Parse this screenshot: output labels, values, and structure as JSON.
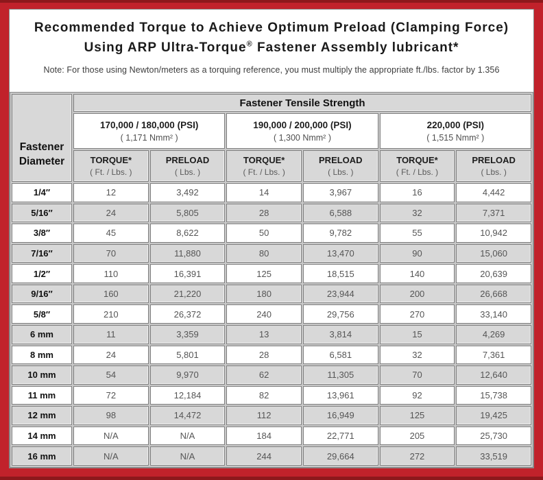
{
  "title": {
    "line1": "Recommended Torque to Achieve Optimum Preload (Clamping Force)",
    "line2_pre": "Using ARP Ultra-Torque",
    "line2_sup": "®",
    "line2_post": " Fastener Assembly lubricant*"
  },
  "note": "Note: For those using Newton/meters as a torquing reference, you must multiply the appropriate ft./lbs. factor by 1.356",
  "table": {
    "corner_header": {
      "line1": "Fastener",
      "line2": "Diameter"
    },
    "group_header": "Fastener Tensile Strength",
    "strength_columns": [
      {
        "psi": "170,000 / 180,000 (PSI)",
        "nmm": "( 1,171 Nmm² )"
      },
      {
        "psi": "190,000 / 200,000 (PSI)",
        "nmm": "( 1,300 Nmm² )"
      },
      {
        "psi": "220,000 (PSI)",
        "nmm": "( 1,515 Nmm² )"
      }
    ],
    "sub_headers": {
      "torque_label": "TORQUE*",
      "torque_unit": "( Ft. / Lbs. )",
      "preload_label": "PRELOAD",
      "preload_unit": "( Lbs. )"
    },
    "rows": [
      {
        "diameter": "1/4″",
        "values": [
          "12",
          "3,492",
          "14",
          "3,967",
          "16",
          "4,442"
        ]
      },
      {
        "diameter": "5/16″",
        "values": [
          "24",
          "5,805",
          "28",
          "6,588",
          "32",
          "7,371"
        ]
      },
      {
        "diameter": "3/8″",
        "values": [
          "45",
          "8,622",
          "50",
          "9,782",
          "55",
          "10,942"
        ]
      },
      {
        "diameter": "7/16″",
        "values": [
          "70",
          "11,880",
          "80",
          "13,470",
          "90",
          "15,060"
        ]
      },
      {
        "diameter": "1/2″",
        "values": [
          "110",
          "16,391",
          "125",
          "18,515",
          "140",
          "20,639"
        ]
      },
      {
        "diameter": "9/16″",
        "values": [
          "160",
          "21,220",
          "180",
          "23,944",
          "200",
          "26,668"
        ]
      },
      {
        "diameter": "5/8″",
        "values": [
          "210",
          "26,372",
          "240",
          "29,756",
          "270",
          "33,140"
        ]
      },
      {
        "diameter": "6 mm",
        "values": [
          "11",
          "3,359",
          "13",
          "3,814",
          "15",
          "4,269"
        ]
      },
      {
        "diameter": "8 mm",
        "values": [
          "24",
          "5,801",
          "28",
          "6,581",
          "32",
          "7,361"
        ]
      },
      {
        "diameter": "10 mm",
        "values": [
          "54",
          "9,970",
          "62",
          "11,305",
          "70",
          "12,640"
        ]
      },
      {
        "diameter": "11 mm",
        "values": [
          "72",
          "12,184",
          "82",
          "13,961",
          "92",
          "15,738"
        ]
      },
      {
        "diameter": "12 mm",
        "values": [
          "98",
          "14,472",
          "112",
          "16,949",
          "125",
          "19,425"
        ]
      },
      {
        "diameter": "14 mm",
        "values": [
          "N/A",
          "N/A",
          "184",
          "22,771",
          "205",
          "25,730"
        ]
      },
      {
        "diameter": "16 mm",
        "values": [
          "N/A",
          "N/A",
          "244",
          "29,664",
          "272",
          "33,519"
        ]
      }
    ]
  },
  "colors": {
    "frame_red": "#c1222b",
    "frame_dark_red": "#8d181c",
    "header_cell_gray": "#d8d8d8",
    "cell_border_gray": "#7f7f7f",
    "value_text_gray": "#555555"
  }
}
